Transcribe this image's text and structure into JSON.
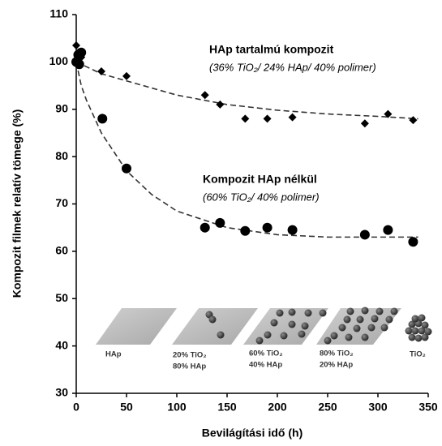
{
  "chart_data": {
    "type": "scatter",
    "xlabel": "Bevilágítási idő (h)",
    "ylabel": "Kompozit filmek relatív tömege (%)",
    "xlim": [
      0,
      350
    ],
    "ylim": [
      30,
      110
    ],
    "xticks": [
      0,
      50,
      100,
      150,
      200,
      250,
      300,
      350
    ],
    "yticks": [
      30,
      40,
      50,
      60,
      70,
      80,
      90,
      100,
      110
    ],
    "series": [
      {
        "name": "HAp tartalmú kompozit",
        "marker": "diamond",
        "color": "#000000",
        "x": [
          0,
          2,
          5,
          25,
          50,
          128,
          143,
          168,
          190,
          215,
          287,
          310,
          335
        ],
        "values": [
          103.5,
          102,
          101,
          98,
          97,
          93,
          91,
          88,
          88,
          88.3,
          87,
          89,
          87.7
        ]
      },
      {
        "name": "Kompozit HAp nélkül",
        "marker": "circle",
        "color": "#000000",
        "x": [
          0,
          2,
          3,
          5,
          26,
          50,
          128,
          143,
          168,
          190,
          215,
          287,
          310,
          335
        ],
        "values": [
          100,
          101.5,
          99.5,
          102,
          88,
          77.5,
          65,
          66,
          64.3,
          65,
          64.5,
          63.5,
          64.5,
          62
        ]
      }
    ],
    "fits": [
      {
        "x": [
          0,
          10,
          25,
          50,
          75,
          100,
          150,
          200,
          250,
          300,
          340
        ],
        "values": [
          100,
          99,
          97.5,
          96,
          94.5,
          93,
          91,
          89.8,
          89,
          88.5,
          88
        ]
      },
      {
        "x": [
          0,
          5,
          10,
          25,
          50,
          75,
          100,
          150,
          200,
          250,
          300,
          340
        ],
        "values": [
          100,
          95,
          92,
          85,
          77,
          72,
          68.5,
          65,
          63.5,
          63,
          63,
          63
        ]
      }
    ],
    "annotations": [
      "(36% TiO₂/ 24% HAp/ 40% polimer)",
      "(60% TiO₂/ 40% polimer)"
    ],
    "inset_panels": [
      [
        "HAp"
      ],
      [
        "20% TiO₂",
        "80% HAp"
      ],
      [
        "60% TiO₂",
        "40% HAp"
      ],
      [
        "80% TiO₂",
        "20% HAp"
      ],
      [
        "TiO₂"
      ]
    ]
  }
}
